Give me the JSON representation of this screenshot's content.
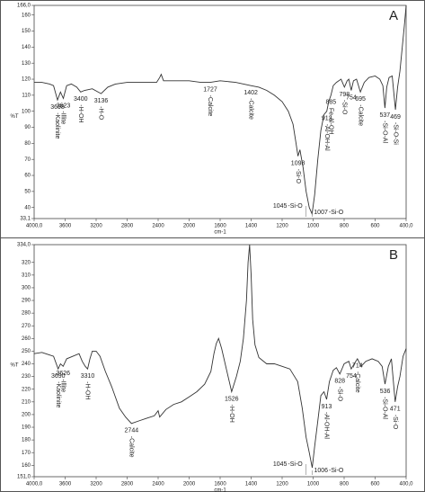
{
  "chart_data": [
    {
      "type": "line",
      "label": "A",
      "xlabel": "cm-1",
      "ylabel": "%T",
      "color": "#333333",
      "xlim": [
        4000,
        400
      ],
      "xticks": [
        {
          "value": 4000,
          "label": "4000,0"
        },
        3600,
        3200,
        2800,
        2400,
        2000,
        1600,
        1400,
        1200,
        1000,
        800,
        600,
        {
          "value": 400,
          "label": "400,0"
        }
      ],
      "ylim": [
        33.1,
        166
      ],
      "yticks": [
        {
          "value": 166,
          "label": "166,0"
        },
        160,
        150,
        140,
        130,
        120,
        110,
        100,
        90,
        80,
        70,
        60,
        50,
        40,
        {
          "value": 33.1,
          "label": "33,1"
        }
      ],
      "x": [
        4000,
        3900,
        3800,
        3750,
        3698,
        3660,
        3623,
        3580,
        3520,
        3450,
        3400,
        3350,
        3250,
        3136,
        3050,
        2950,
        2800,
        2600,
        2420,
        2380,
        2360,
        2330,
        2200,
        2000,
        1850,
        1727,
        1600,
        1500,
        1402,
        1350,
        1300,
        1250,
        1200,
        1160,
        1130,
        1110,
        1098,
        1085,
        1065,
        1045,
        1025,
        1007,
        990,
        970,
        950,
        930,
        912,
        900,
        885,
        870,
        850,
        820,
        798,
        780,
        770,
        754,
        740,
        720,
        695,
        670,
        640,
        600,
        570,
        550,
        537,
        525,
        510,
        490,
        469,
        455,
        440,
        425,
        410,
        400
      ],
      "values": [
        118,
        118,
        117,
        116,
        107,
        112,
        108,
        116,
        117,
        115,
        112,
        113,
        114,
        111,
        115,
        117,
        118,
        118,
        118,
        121,
        123,
        119,
        119,
        119,
        118,
        118,
        119,
        118,
        116,
        115,
        113,
        110,
        106,
        100,
        92,
        80,
        72,
        76,
        65,
        50,
        40,
        36,
        48,
        70,
        88,
        98,
        100,
        106,
        110,
        116,
        118,
        120,
        115,
        119,
        120,
        113,
        119,
        120,
        112,
        118,
        121,
        122,
        120,
        116,
        102,
        115,
        121,
        122,
        101,
        115,
        125,
        140,
        155,
        166
      ],
      "peak_labels": [
        {
          "x": 3698,
          "text": "-Kaolinite"
        },
        {
          "x": 3623,
          "text": "-Illite"
        },
        {
          "x": 3400,
          "text": "-H-OH"
        },
        {
          "x": 3136,
          "text": "-H-O"
        },
        {
          "x": 1727,
          "text": "-Calcite"
        },
        {
          "x": 1402,
          "text": "-Calcite"
        },
        {
          "x": 1098,
          "text": "-Si-O"
        },
        {
          "x": 912,
          "text": "-Al-OH-Al"
        },
        {
          "x": 885,
          "text": "Fe-Al-OH"
        },
        {
          "x": 798,
          "text": "-Si-O"
        },
        {
          "x": 754
        },
        {
          "x": 695,
          "text": "-Calcite"
        },
        {
          "x": 537,
          "text": "-Si-O-Al"
        },
        {
          "x": 469,
          "text": "-Si-O-Si"
        }
      ],
      "band_labels": [
        {
          "x": 1045,
          "text": "-Si-O"
        },
        {
          "x": 1007,
          "text": "-Si-O"
        }
      ]
    },
    {
      "type": "line",
      "label": "B",
      "xlabel": "cm-1",
      "ylabel": "%T",
      "color": "#333333",
      "xlim": [
        4000,
        400
      ],
      "xticks": [
        {
          "value": 4000,
          "label": "4000,0"
        },
        3600,
        3200,
        2800,
        2400,
        2000,
        1600,
        1400,
        1200,
        1000,
        800,
        600,
        {
          "value": 400,
          "label": "400,0"
        }
      ],
      "ylim": [
        151,
        334
      ],
      "yticks": [
        {
          "value": 334,
          "label": "334,0"
        },
        320,
        310,
        300,
        290,
        280,
        270,
        260,
        250,
        240,
        230,
        220,
        210,
        200,
        190,
        180,
        170,
        160,
        {
          "value": 151,
          "label": "151,0"
        }
      ],
      "x": [
        4000,
        3900,
        3800,
        3750,
        3690,
        3660,
        3626,
        3580,
        3500,
        3420,
        3380,
        3340,
        3310,
        3280,
        3250,
        3200,
        3150,
        3080,
        3000,
        2900,
        2820,
        2744,
        2650,
        2550,
        2450,
        2400,
        2380,
        2300,
        2200,
        2100,
        2000,
        1900,
        1800,
        1720,
        1680,
        1650,
        1620,
        1590,
        1560,
        1526,
        1495,
        1470,
        1450,
        1430,
        1420,
        1410,
        1400,
        1390,
        1375,
        1350,
        1300,
        1250,
        1200,
        1150,
        1100,
        1070,
        1045,
        1025,
        1006,
        990,
        970,
        950,
        930,
        913,
        895,
        870,
        850,
        828,
        800,
        770,
        754,
        735,
        714,
        690,
        660,
        620,
        580,
        555,
        536,
        515,
        495,
        471,
        455,
        440,
        420,
        400
      ],
      "values": [
        248,
        249,
        247,
        246,
        236,
        240,
        238,
        244,
        246,
        248,
        242,
        238,
        236,
        244,
        250,
        250,
        246,
        234,
        222,
        205,
        198,
        193,
        195,
        197,
        199,
        203,
        198,
        204,
        208,
        210,
        214,
        218,
        224,
        234,
        248,
        256,
        260,
        252,
        236,
        218,
        230,
        242,
        260,
        290,
        320,
        334,
        310,
        275,
        255,
        245,
        240,
        240,
        238,
        236,
        226,
        205,
        182,
        170,
        158,
        175,
        195,
        215,
        218,
        212,
        226,
        235,
        237,
        232,
        240,
        242,
        236,
        240,
        244,
        238,
        242,
        244,
        242,
        238,
        224,
        238,
        244,
        210,
        222,
        230,
        246,
        252
      ],
      "peak_labels": [
        {
          "x": 3690,
          "text": "-Kaolinite"
        },
        {
          "x": 3626,
          "text": "-Illite"
        },
        {
          "x": 3310,
          "text": "-H-OH"
        },
        {
          "x": 2744,
          "text": "-Calcite"
        },
        {
          "x": 1526,
          "text": "-H-OH"
        },
        {
          "x": 913,
          "text": "-Al-OH-Al"
        },
        {
          "x": 828,
          "text": "-Si-O"
        },
        {
          "x": 754
        },
        {
          "x": 714,
          "text": "-Calcite"
        },
        {
          "x": 536,
          "text": "-Si-O-Al"
        },
        {
          "x": 471,
          "text": "-Si-O"
        }
      ],
      "band_labels": [
        {
          "x": 1045,
          "text": "-Si-O"
        },
        {
          "x": 1006,
          "text": "-Si-O"
        }
      ]
    }
  ]
}
